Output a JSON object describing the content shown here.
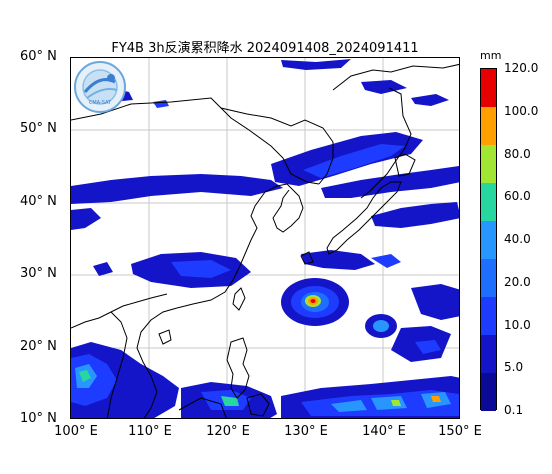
{
  "title": "FY4B  3h反演累积降水  2024091408_2024091411",
  "y_axis_labels": [
    "60° N",
    "50° N",
    "40° N",
    "30° N",
    "20° N",
    "10° N"
  ],
  "x_axis_labels": [
    "100° E",
    "110° E",
    "120° E",
    "130° E",
    "140° E",
    "150° E"
  ],
  "map_extent": {
    "lon": [
      100,
      150
    ],
    "lat": [
      10,
      60
    ]
  },
  "colorbar": {
    "unit": "mm",
    "levels": [
      "0.1",
      "5.0",
      "10.0",
      "20.0",
      "40.0",
      "60.0",
      "80.0",
      "100.0",
      "120.0"
    ],
    "colors": [
      "#0a0a96",
      "#1414c8",
      "#1e3cff",
      "#1e6eff",
      "#2896ff",
      "#28d7a0",
      "#a0e632",
      "#ffa000",
      "#e60000"
    ]
  },
  "logo": {
    "text": "CMA-SAT"
  },
  "colors": {
    "land_outline": "#000000",
    "grid": "#c8c8c8"
  }
}
